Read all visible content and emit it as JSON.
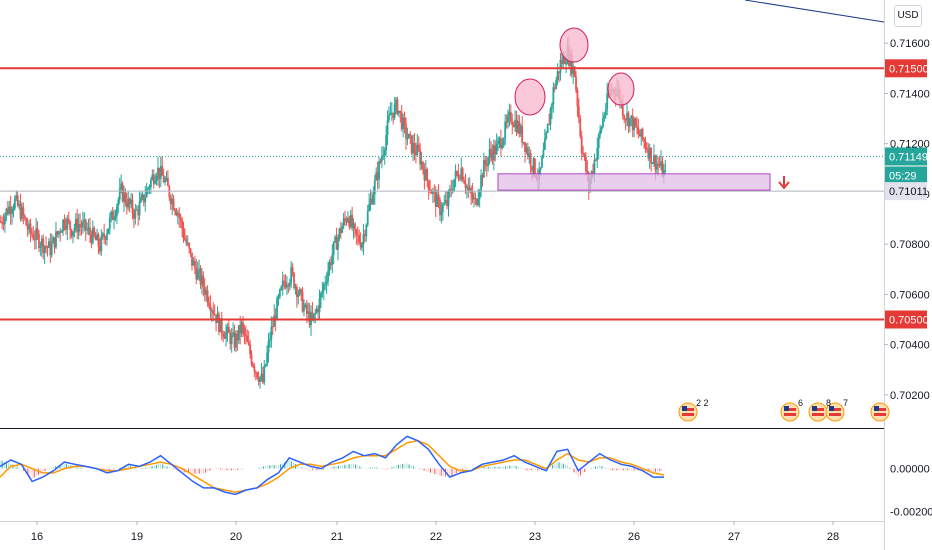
{
  "chart_data": {
    "type": "candlestick",
    "currency_label": "USD",
    "price_axis": {
      "ylim": [
        0.7008,
        0.7176
      ],
      "ticks": [
        "0.71600",
        "0.71400",
        "0.71200",
        "0.71000",
        "0.70800",
        "0.70600",
        "0.70400",
        "0.70200"
      ]
    },
    "time_axis": {
      "labels": [
        "16",
        "19",
        "20",
        "21",
        "22",
        "23",
        "26",
        "27",
        "28"
      ]
    },
    "resistance_level": "0.71500",
    "support_level": "0.70500",
    "current_price": "0.71149",
    "countdown": "05:29",
    "neckline_price": "0.71011",
    "price_path": [
      0.7089,
      0.7094,
      0.7097,
      0.7092,
      0.7085,
      0.7083,
      0.708,
      0.7078,
      0.7084,
      0.709,
      0.7086,
      0.7088,
      0.7086,
      0.7083,
      0.7079,
      0.7086,
      0.7093,
      0.7101,
      0.7096,
      0.7092,
      0.7097,
      0.7104,
      0.711,
      0.7106,
      0.7099,
      0.7093,
      0.7082,
      0.7073,
      0.7067,
      0.7061,
      0.7054,
      0.7047,
      0.7044,
      0.7041,
      0.7047,
      0.7038,
      0.703,
      0.7025,
      0.7043,
      0.7055,
      0.7065,
      0.7068,
      0.7061,
      0.7053,
      0.7049,
      0.7057,
      0.7068,
      0.7078,
      0.7086,
      0.7092,
      0.7083,
      0.7081,
      0.7095,
      0.7106,
      0.7118,
      0.7132,
      0.7135,
      0.7125,
      0.7119,
      0.7116,
      0.7107,
      0.71,
      0.7094,
      0.7096,
      0.7106,
      0.711,
      0.7101,
      0.7096,
      0.7109,
      0.7116,
      0.7118,
      0.7124,
      0.7131,
      0.7127,
      0.712,
      0.7112,
      0.7106,
      0.7122,
      0.7141,
      0.7152,
      0.7156,
      0.7148,
      0.7119,
      0.7103,
      0.7116,
      0.713,
      0.7141,
      0.7142,
      0.7132,
      0.7129,
      0.7124,
      0.712,
      0.7114,
      0.7111,
      0.7106
    ],
    "macd": {
      "ylim": [
        -0.0024,
        0.0018
      ],
      "ticks": [
        "0.00000",
        "-0.00200"
      ],
      "macd_line": [
        0.0001,
        0.0004,
        0.0002,
        -0.0006,
        -0.0004,
        -0.0001,
        0.0003,
        0.0002,
        0.0001,
        0.0,
        -0.0002,
        -0.0001,
        0.0002,
        0.0001,
        0.0003,
        0.0006,
        0.0002,
        -0.0002,
        -0.0006,
        -0.0009,
        -0.0009,
        -0.0011,
        -0.0012,
        -0.001,
        -0.0009,
        -0.0005,
        -0.0002,
        0.0005,
        0.0003,
        0.0001,
        0.0,
        0.0003,
        0.0005,
        0.0008,
        0.0006,
        0.0007,
        0.0005,
        0.0011,
        0.0015,
        0.0013,
        0.0009,
        0.0002,
        -0.0004,
        -0.0002,
        -0.0001,
        0.0002,
        0.0003,
        0.0004,
        0.0006,
        0.0003,
        0.0001,
        -0.0001,
        0.0008,
        0.0009,
        -0.0001,
        0.0003,
        0.0007,
        0.0004,
        0.0002,
        0.0001,
        -0.0001,
        -0.0004,
        -0.0004
      ],
      "signal_line": [
        -0.0004,
        0.0001,
        0.0002,
        0.0,
        -0.0002,
        -0.0002,
        0.0,
        0.0001,
        0.0001,
        0.0,
        -0.0001,
        -0.0001,
        0.0,
        0.0001,
        0.0002,
        0.0003,
        0.0002,
        0.0,
        -0.0003,
        -0.0006,
        -0.0009,
        -0.001,
        -0.0011,
        -0.001,
        -0.0009,
        -0.0007,
        -0.0004,
        0.0,
        0.0002,
        0.0002,
        0.0001,
        0.0002,
        0.0003,
        0.0005,
        0.0006,
        0.0006,
        0.0006,
        0.0009,
        0.0012,
        0.0013,
        0.0011,
        0.0006,
        0.0001,
        -0.0001,
        -0.0001,
        0.0001,
        0.0002,
        0.0003,
        0.0004,
        0.0004,
        0.0002,
        0.0,
        0.0004,
        0.0007,
        0.0004,
        0.0003,
        0.0005,
        0.0005,
        0.0003,
        0.0002,
        0.0,
        -0.0002,
        -0.0003
      ]
    },
    "event_labels": [
      "2 2",
      "6",
      "8",
      "7"
    ],
    "colors": {
      "up": "#26a69a",
      "down": "#ef5350",
      "level_line": "#e53935",
      "current_price": "#26a69a",
      "neckline": "#b2b5be",
      "zone_fill": "#e1bee7",
      "zone_border": "#ab47bc",
      "circle_fill": "#f8bbd0",
      "circle_border": "#d81b60",
      "macd_line": "#2962ff",
      "signal_line": "#ff9800",
      "trend_line": "#1e3a8a"
    }
  }
}
